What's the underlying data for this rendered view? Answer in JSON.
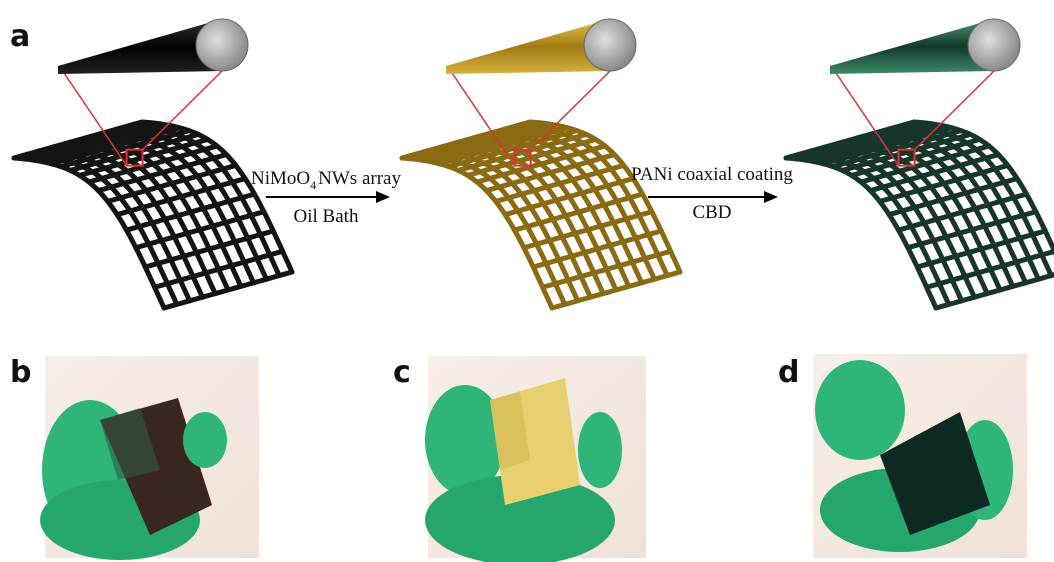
{
  "panels": [
    {
      "label": "a"
    },
    {
      "label": "b"
    },
    {
      "label": "c"
    },
    {
      "label": "d"
    }
  ],
  "steps": [
    {
      "label_parts": [
        "NiMoO",
        "4",
        "NWs array"
      ],
      "sublabel": "Oil Bath"
    },
    {
      "label": "PANi coaxial coating",
      "sublabel": "CBD"
    }
  ]
}
